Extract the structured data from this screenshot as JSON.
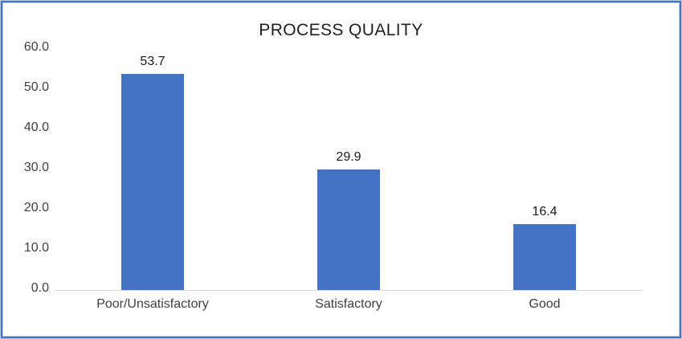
{
  "chart_data": {
    "type": "bar",
    "title": "PROCESS QUALITY",
    "categories": [
      "Poor/Unsatisfactory",
      "Satisfactory",
      "Good"
    ],
    "values": [
      53.7,
      29.9,
      16.4
    ],
    "data_labels": [
      "53.7",
      "29.9",
      "16.4"
    ],
    "xlabel": "",
    "ylabel": "",
    "ylim": [
      0,
      60
    ],
    "yticks": [
      0,
      10,
      20,
      30,
      40,
      50,
      60
    ],
    "ytick_labels": [
      "0.0",
      "10.0",
      "20.0",
      "30.0",
      "40.0",
      "50.0",
      "60.0"
    ],
    "grid": false,
    "legend": false,
    "colors": {
      "bar": "#4472c4",
      "frame_border": "#4472c4",
      "axis_line": "#d9d9d9",
      "tick_text": "#404040",
      "title_text": "#1f1f1f",
      "background": "#ffffff"
    }
  }
}
